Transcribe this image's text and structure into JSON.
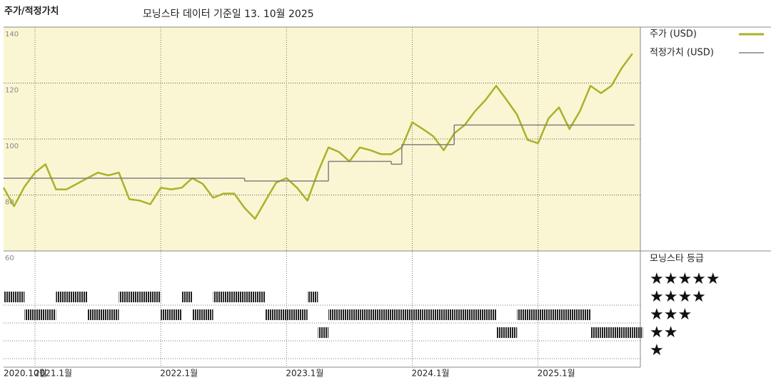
{
  "chart_data": {
    "type": "line",
    "title": "주가/적정가치",
    "subtitle": "모닝스타 데이터 기준일 13. 10월 2025",
    "x": [
      "2020-10",
      "2020-11",
      "2020-12",
      "2021-01",
      "2021-02",
      "2021-03",
      "2021-04",
      "2021-05",
      "2021-06",
      "2021-07",
      "2021-08",
      "2021-09",
      "2021-10",
      "2021-11",
      "2021-12",
      "2022-01",
      "2022-02",
      "2022-03",
      "2022-04",
      "2022-05",
      "2022-06",
      "2022-07",
      "2022-08",
      "2022-09",
      "2022-10",
      "2022-11",
      "2022-12",
      "2023-01",
      "2023-02",
      "2023-03",
      "2023-04",
      "2023-05",
      "2023-06",
      "2023-07",
      "2023-08",
      "2023-09",
      "2023-10",
      "2023-11",
      "2023-12",
      "2024-01",
      "2024-02",
      "2024-03",
      "2024-04",
      "2024-05",
      "2024-06",
      "2024-07",
      "2024-08",
      "2024-09",
      "2024-10",
      "2024-11",
      "2024-12",
      "2025-01",
      "2025-02",
      "2025-03",
      "2025-04",
      "2025-05",
      "2025-06",
      "2025-07",
      "2025-08",
      "2025-09",
      "2025-10"
    ],
    "series": [
      {
        "name": "주가 (USD)",
        "color": "#a9b22a",
        "style": "line",
        "values": [
          82.6,
          76,
          83,
          88,
          91,
          82,
          82,
          84,
          86,
          88,
          87,
          88,
          78.5,
          78,
          76.7,
          82.6,
          82,
          82.6,
          86,
          84,
          79,
          80.5,
          80.5,
          75.4,
          71.5,
          78,
          84.4,
          86,
          82.6,
          78,
          88.2,
          97,
          95.4,
          92,
          97,
          96,
          94.6,
          94.6,
          97,
          106,
          103.6,
          101,
          96,
          102,
          105,
          110,
          114,
          119,
          114,
          108.7,
          99.7,
          98.5,
          107.4,
          111.3,
          103.6,
          110,
          119,
          116.4,
          119,
          125.4,
          130.5
        ]
      },
      {
        "name": "적정가치 (USD)",
        "color": "#808080",
        "style": "step",
        "values": [
          86,
          86,
          86,
          86,
          86,
          86,
          86,
          86,
          86,
          86,
          86,
          86,
          86,
          86,
          86,
          86,
          86,
          86,
          86,
          86,
          86,
          86,
          86,
          85,
          85,
          85,
          85,
          85,
          85,
          85,
          85,
          92,
          92,
          92,
          92,
          92,
          92,
          91,
          98,
          98,
          98,
          98,
          98,
          105,
          105,
          105,
          105,
          105,
          105,
          105,
          105,
          105,
          105,
          105,
          105,
          105,
          105,
          105,
          105,
          105,
          105
        ]
      }
    ],
    "ylim": [
      60,
      140
    ],
    "yticks": [
      60,
      80,
      100,
      120,
      140
    ],
    "xticks": [
      {
        "value": "2020-10",
        "label": "2020.10월"
      },
      {
        "value": "2021-01",
        "label": "2021.1월"
      },
      {
        "value": "2022-01",
        "label": "2022.1월"
      },
      {
        "value": "2023-01",
        "label": "2023.1월"
      },
      {
        "value": "2024-01",
        "label": "2024.1월"
      },
      {
        "value": "2025-01",
        "label": "2025.1월"
      }
    ],
    "grid": true,
    "background": "#faf6d3",
    "rating": {
      "title": "모닝스타 등급",
      "levels": [
        {
          "value": 5,
          "label": "★★★★★"
        },
        {
          "value": 4,
          "label": "★★★★"
        },
        {
          "value": 3,
          "label": "★★★"
        },
        {
          "value": 2,
          "label": "★★"
        },
        {
          "value": 1,
          "label": "★"
        }
      ],
      "values": [
        4,
        4,
        3,
        3,
        3,
        4,
        4,
        4,
        3,
        3,
        3,
        4,
        4,
        4,
        4,
        3,
        3,
        4,
        3,
        3,
        4,
        4,
        4,
        4,
        4,
        3,
        3,
        3,
        3,
        4,
        2,
        3,
        3,
        3,
        3,
        3,
        3,
        3,
        3,
        3,
        3,
        3,
        3,
        3,
        3,
        3,
        3,
        2,
        2,
        3,
        3,
        3,
        3,
        3,
        3,
        3,
        2,
        2,
        2,
        2,
        2
      ]
    }
  }
}
